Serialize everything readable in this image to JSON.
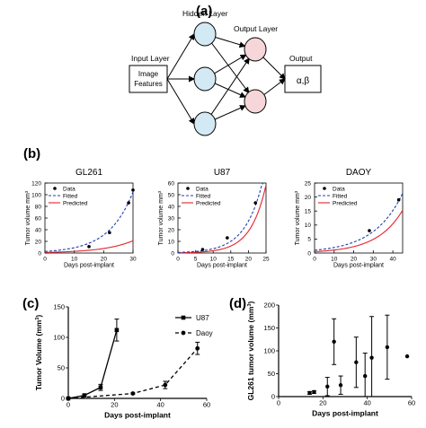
{
  "panel_a": {
    "label": "(a)",
    "input_layer_label": "Input Layer",
    "hidden_layer_label": "Hidden Layer",
    "output_layer_label": "Output Layer",
    "output_label": "Output",
    "input_box_line1": "Image",
    "input_box_line2": "Features",
    "output_box_text": "α,β",
    "colors": {
      "hidden": "#d3e9f3",
      "output": "#f6d6d8"
    }
  },
  "panel_b": {
    "label": "(b)"
  },
  "panel_c": {
    "label": "(c)"
  },
  "panel_d": {
    "label": "(d)"
  },
  "chart_data": [
    {
      "id": "b1",
      "type": "line",
      "title": "GL261",
      "xlabel": "Days post-implant",
      "ylabel": "Tumor volume mm",
      "ylabel_sup": "3",
      "xlim": [
        0,
        30
      ],
      "ylim": [
        0,
        120
      ],
      "xticks": [
        0,
        10,
        20,
        30
      ],
      "yticks": [
        0,
        20,
        40,
        60,
        80,
        100,
        120
      ],
      "legend": [
        "Data",
        "Fitted",
        "Predicted"
      ],
      "data_x": [
        15,
        22,
        28.5,
        30
      ],
      "data_y": [
        11,
        35,
        86,
        108
      ],
      "fitted_a": 2.7,
      "fitted_b": 0.122,
      "pred_a": 1.05,
      "pred_b": 0.1,
      "colors": {
        "data": "#000000",
        "fitted": "#1f3fae",
        "predicted": "#e8202a"
      }
    },
    {
      "id": "b2",
      "type": "line",
      "title": "U87",
      "xlabel": "Days post-implant",
      "ylabel": "Tumor volume mm",
      "ylabel_sup": "3",
      "xlim": [
        0,
        25
      ],
      "ylim": [
        0,
        60
      ],
      "xticks": [
        0,
        5,
        10,
        15,
        20,
        25
      ],
      "yticks": [
        0,
        10,
        20,
        30,
        40,
        50,
        60
      ],
      "legend": [
        "Data",
        "Fitted",
        "Predicted"
      ],
      "data_x": [
        7,
        14,
        22
      ],
      "data_y": [
        3,
        13,
        43
      ],
      "fitted_a": 0.5,
      "fitted_b": 0.2,
      "pred_a": 0.2,
      "pred_b": 0.227,
      "colors": {
        "data": "#000000",
        "fitted": "#1f3fae",
        "predicted": "#e8202a"
      }
    },
    {
      "id": "b3",
      "type": "line",
      "title": "DAOY",
      "xlabel": "Days post-implant",
      "ylabel": "Tumor volume mm",
      "ylabel_sup": "3",
      "xlim": [
        0,
        45
      ],
      "ylim": [
        0,
        25
      ],
      "xticks": [
        0,
        10,
        20,
        30,
        40
      ],
      "yticks": [
        0,
        5,
        10,
        15,
        20,
        25
      ],
      "legend": [
        "Data",
        "Fitted",
        "Predicted"
      ],
      "data_x": [
        28,
        43
      ],
      "data_y": [
        8,
        19
      ],
      "fitted_a": 1.0,
      "fitted_b": 0.068,
      "pred_a": 0.5,
      "pred_b": 0.076,
      "colors": {
        "data": "#000000",
        "fitted": "#1f3fae",
        "predicted": "#e8202a"
      }
    },
    {
      "id": "c",
      "type": "line",
      "xlabel": "Days post-implant",
      "ylabel": "Tumor Volume (mm",
      "ylabel_sup": "3",
      "ylabel_end": ")",
      "xlim": [
        0,
        60
      ],
      "ylim": [
        0,
        150
      ],
      "xticks": [
        0,
        20,
        40,
        60
      ],
      "yticks": [
        0,
        50,
        100,
        150
      ],
      "series": [
        {
          "name": "U87",
          "style": "solid",
          "marker": "square",
          "x": [
            0,
            7,
            14,
            21
          ],
          "y": [
            0,
            5,
            18,
            112
          ],
          "err": [
            0,
            2,
            5,
            18
          ]
        },
        {
          "name": "Daoy",
          "style": "dashed",
          "marker": "circle",
          "x": [
            0,
            28,
            42,
            56
          ],
          "y": [
            0,
            8,
            22,
            82
          ],
          "err": [
            0,
            1,
            6,
            10
          ]
        }
      ]
    },
    {
      "id": "d",
      "type": "scatter",
      "xlabel": "Days post-implant",
      "ylabel": "GL261 tumor volume (mm",
      "ylabel_sup": "3",
      "ylabel_end": ")",
      "xlim": [
        0,
        60
      ],
      "ylim": [
        0,
        200
      ],
      "xticks": [
        0,
        20,
        40,
        60
      ],
      "yticks": [
        0,
        50,
        100,
        150,
        200
      ],
      "points": [
        {
          "x": 14,
          "y": 8,
          "err": 3
        },
        {
          "x": 16,
          "y": 10,
          "err": 3
        },
        {
          "x": 22,
          "y": 22,
          "err": 20
        },
        {
          "x": 25,
          "y": 120,
          "err": 50
        },
        {
          "x": 28,
          "y": 25,
          "err": 20
        },
        {
          "x": 35,
          "y": 75,
          "err": 55
        },
        {
          "x": 39,
          "y": 45,
          "err": 50
        },
        {
          "x": 42,
          "y": 85,
          "err": 90
        },
        {
          "x": 49,
          "y": 108,
          "err": 70
        },
        {
          "x": 58,
          "y": 88,
          "err": 0
        }
      ]
    }
  ]
}
